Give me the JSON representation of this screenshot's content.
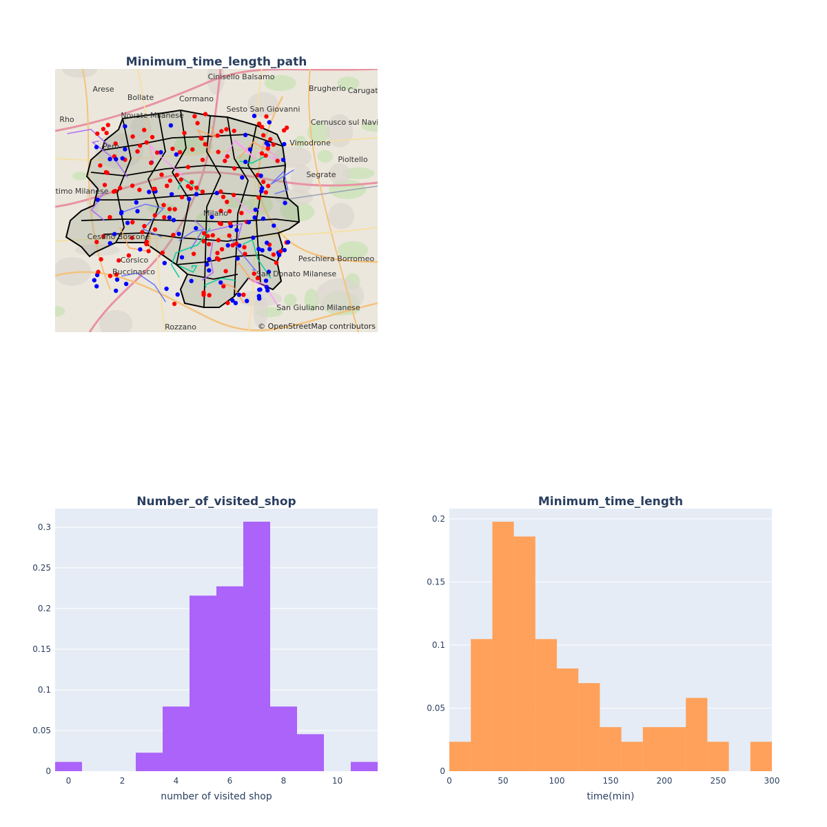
{
  "map_panel": {
    "title": "Minimum_time_length_path",
    "attribution": "© OpenStreetMap contributors",
    "place_labels": [
      "Arese",
      "Bollate",
      "Cormano",
      "Cinisello Balsamo",
      "Brugherio",
      "Carugate",
      "Rho",
      "Novate Milanese",
      "Sesto San Giovanni",
      "Cernusco sul Naviglio",
      "Vimodrone",
      "Pero",
      "Pioltello",
      "Segrate",
      "Settimo Milanese",
      "Milano",
      "Cesano Boscone",
      "Corsico",
      "Buccinasco",
      "Peschiera Borromeo",
      "San Donato Milanese",
      "San Giuliano Milanese",
      "Rozzano"
    ],
    "colors": {
      "shop": "#ff0000",
      "customer": "#0000ff",
      "boundary": "#000000",
      "paths": [
        "#00cc96",
        "#636efa",
        "#ff97ff",
        "#ffa15a",
        "#ab63fa"
      ]
    }
  },
  "chart_data": [
    {
      "type": "bar",
      "title": "Number_of_visited_shop",
      "xlabel": "number of visited shop",
      "ylabel": "",
      "categories": [
        0,
        1,
        2,
        3,
        4,
        5,
        6,
        7,
        8,
        9,
        10,
        11
      ],
      "values": [
        0.0114,
        0,
        0,
        0.0227,
        0.0795,
        0.2159,
        0.2273,
        0.3068,
        0.0795,
        0.0455,
        0,
        0.0114
      ],
      "xticks": [
        "0",
        "2",
        "4",
        "6",
        "8",
        "10"
      ],
      "yticks": [
        "0",
        "0.05",
        "0.1",
        "0.15",
        "0.2",
        "0.25",
        "0.3"
      ],
      "xlim": [
        -0.5,
        11.5
      ],
      "ylim": [
        0,
        0.3229
      ],
      "color": "#ab63fa",
      "grid": true
    },
    {
      "type": "bar",
      "title": "Minimum_time_length",
      "xlabel": "time(min)",
      "ylabel": "",
      "bin_edges": [
        0,
        20,
        40,
        60,
        80,
        100,
        120,
        140,
        160,
        180,
        200,
        220,
        240,
        260,
        280,
        300
      ],
      "values": [
        0.0233,
        0.1047,
        0.1977,
        0.186,
        0.1047,
        0.0814,
        0.0698,
        0.0349,
        0.0233,
        0.0349,
        0.0349,
        0.0581,
        0.0233,
        0,
        0.0233
      ],
      "xticks": [
        "0",
        "50",
        "100",
        "150",
        "200",
        "250",
        "300"
      ],
      "yticks": [
        "0",
        "0.05",
        "0.1",
        "0.15",
        "0.2"
      ],
      "xlim": [
        0,
        300
      ],
      "ylim": [
        0,
        0.2081
      ],
      "color": "#ffa15a",
      "grid": true
    }
  ]
}
